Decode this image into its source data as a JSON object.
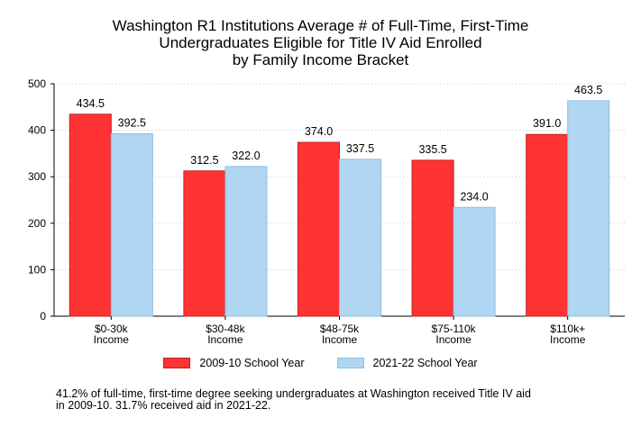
{
  "chart_data": {
    "type": "bar",
    "title_lines": [
      "Washington R1 Institutions Average # of Full-Time, First-Time",
      "Undergraduates Eligible for Title IV Aid Enrolled",
      "by Family Income Bracket"
    ],
    "categories": [
      [
        "$0-30k",
        "Income"
      ],
      [
        "$30-48k",
        "Income"
      ],
      [
        "$48-75k",
        "Income"
      ],
      [
        "$75-110k",
        "Income"
      ],
      [
        "$110k+",
        "Income"
      ]
    ],
    "series": [
      {
        "name": "2009-10 School Year",
        "color": "#ff3333",
        "stroke": "#c41e1e",
        "values": [
          434.5,
          312.5,
          374.0,
          335.5,
          391.0
        ],
        "labels": [
          "434.5",
          "312.5",
          "374.0",
          "335.5",
          "391.0"
        ]
      },
      {
        "name": "2021-22 School Year",
        "color": "#b0d6f2",
        "stroke": "#8bbde3",
        "values": [
          392.5,
          322.0,
          337.5,
          234.0,
          463.5
        ],
        "labels": [
          "392.5",
          "322.0",
          "337.5",
          "234.0",
          "463.5"
        ]
      }
    ],
    "yticks": [
      "0",
      "100",
      "200",
      "300",
      "400",
      "500"
    ],
    "ylim": [
      0,
      500
    ],
    "grid": "horizontal dotted",
    "legend": "bottom",
    "footnote_lines": [
      "41.2% of full-time, first-time degree seeking undergraduates at Washington received Title IV aid",
      "in 2009-10. 31.7% received aid in 2021-22."
    ]
  }
}
